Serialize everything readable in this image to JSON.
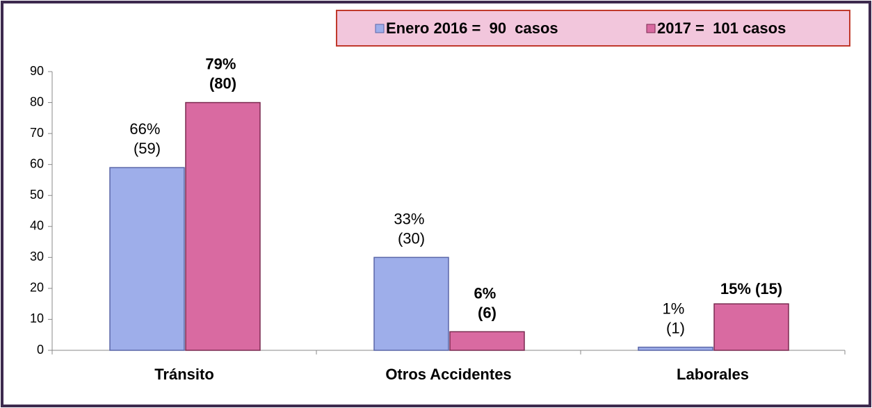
{
  "chart_data": {
    "type": "bar",
    "categories": [
      "Tránsito",
      "Otros Accidentes",
      "Laborales"
    ],
    "series": [
      {
        "name": "Enero 2016 =  90  casos",
        "color": "#9eaeea",
        "values": [
          59,
          30,
          1
        ],
        "value_labels": [
          "66% (59)",
          "33% (30)",
          "1% (1)"
        ]
      },
      {
        "name": "2017 =  101 casos",
        "color": "#d96aa1",
        "values": [
          80,
          6,
          15
        ],
        "value_labels": [
          "79% (80)",
          "6% (6)",
          "15% (15)"
        ]
      }
    ],
    "ylim": [
      0,
      90
    ],
    "yticks": [
      0,
      10,
      20,
      30,
      40,
      50,
      60,
      70,
      80,
      90
    ],
    "grid": false,
    "legend": "top-right"
  }
}
